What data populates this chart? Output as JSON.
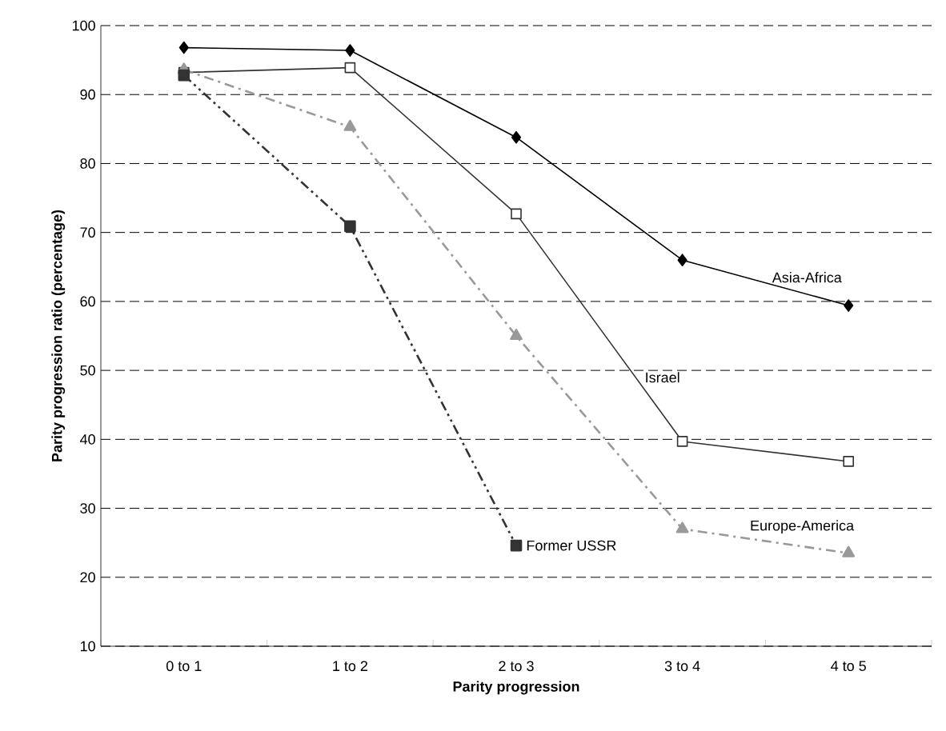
{
  "chart_data": {
    "type": "line",
    "xlabel": "Parity progression",
    "ylabel": "Parity progression ratio (percentage)",
    "categories": [
      "0 to 1",
      "1 to 2",
      "2 to 3",
      "3 to 4",
      "4 to 5"
    ],
    "series": [
      {
        "name": "Asia-Africa",
        "color": "#000000",
        "marker": "diamond",
        "line_style": "solid",
        "values": [
          96.8,
          96.4,
          83.8,
          66,
          59.4
        ]
      },
      {
        "name": "Israel",
        "color": "#333333",
        "marker": "square",
        "line_style": "solid",
        "values": [
          93.2,
          93.9,
          72.7,
          39.7,
          36.8
        ]
      },
      {
        "name": "Europe-America",
        "color": "#999999",
        "marker": "triangle",
        "line_style": "dashed",
        "values": [
          93.6,
          85.3,
          55,
          27,
          23.5
        ]
      },
      {
        "name": "Former USSR",
        "color": "#333333",
        "marker": "square",
        "line_style": "dotted",
        "values": [
          92.8,
          70.9,
          24.6,
          null,
          null
        ]
      }
    ],
    "ylim": [
      10,
      100
    ],
    "yticks": [
      10,
      20,
      30,
      40,
      50,
      60,
      70,
      80,
      90,
      100
    ],
    "grid": "y"
  }
}
